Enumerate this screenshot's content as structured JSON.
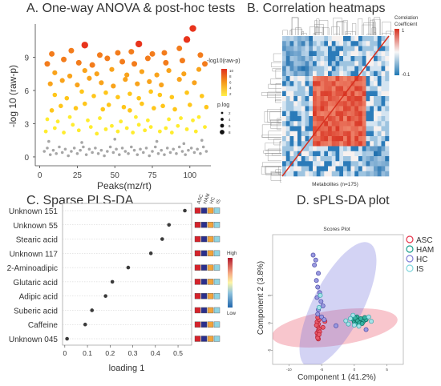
{
  "panels": {
    "a_title": "A. One-way ANOVA & post-hoc tests",
    "b_title": "B. Correlation heatmaps",
    "c_title": "C. Sparse PLS-DA",
    "d_title": "D. sPLS-DA plot"
  },
  "chart_data": [
    {
      "type": "scatter",
      "xlabel": "Peaks(mz/rt)",
      "ylabel": "-log 10 (raw-p)",
      "xticks": [
        0,
        25,
        50,
        75,
        100
      ],
      "yticks": [
        0,
        3,
        6,
        9
      ],
      "xlim": [
        -3,
        114
      ],
      "ylim": [
        -0.8,
        12
      ],
      "legend_color_title": "-log10(raw-p)",
      "legend_color_ticks": [
        "10",
        "8",
        "6",
        "4",
        "2"
      ],
      "legend_size_title": "p.log",
      "legend_size_ticks": [
        "2",
        "4",
        "6",
        "8"
      ],
      "points": [
        [
          3,
          0.5
        ],
        [
          5,
          0.8
        ],
        [
          7,
          0.2
        ],
        [
          9,
          0.6
        ],
        [
          11,
          0.3
        ],
        [
          13,
          0.9
        ],
        [
          15,
          0.4
        ],
        [
          17,
          0.7
        ],
        [
          19,
          0.1
        ],
        [
          21,
          0.5
        ],
        [
          23,
          0.8
        ],
        [
          25,
          0.3
        ],
        [
          27,
          0.6
        ],
        [
          29,
          0.9
        ],
        [
          31,
          0.2
        ],
        [
          33,
          0.7
        ],
        [
          35,
          0.4
        ],
        [
          37,
          0.8
        ],
        [
          39,
          0.3
        ],
        [
          41,
          0.6
        ],
        [
          43,
          0.1
        ],
        [
          45,
          0.5
        ],
        [
          47,
          0.9
        ],
        [
          49,
          0.4
        ],
        [
          51,
          0.7
        ],
        [
          53,
          0.2
        ],
        [
          55,
          0.8
        ],
        [
          57,
          0.5
        ],
        [
          59,
          0.3
        ],
        [
          61,
          0.9
        ],
        [
          63,
          0.6
        ],
        [
          65,
          0.2
        ],
        [
          67,
          0.7
        ],
        [
          69,
          0.4
        ],
        [
          71,
          0.8
        ],
        [
          73,
          0.1
        ],
        [
          75,
          0.5
        ],
        [
          77,
          0.9
        ],
        [
          79,
          0.3
        ],
        [
          81,
          0.6
        ],
        [
          83,
          0.2
        ],
        [
          85,
          0.8
        ],
        [
          87,
          0.4
        ],
        [
          89,
          0.7
        ],
        [
          91,
          0.3
        ],
        [
          93,
          0.9
        ],
        [
          95,
          0.5
        ],
        [
          97,
          0.2
        ],
        [
          99,
          0.6
        ],
        [
          101,
          0.8
        ],
        [
          103,
          0.4
        ],
        [
          105,
          0.7
        ],
        [
          107,
          0.3
        ],
        [
          109,
          0.9
        ],
        [
          111,
          0.5
        ],
        [
          6,
          1.4
        ],
        [
          28,
          1.3
        ],
        [
          50,
          1.6
        ],
        [
          78,
          1.4
        ],
        [
          96,
          1.2
        ],
        [
          108,
          1.5
        ],
        [
          4,
          2.3
        ],
        [
          10,
          2.6
        ],
        [
          16,
          2.2
        ],
        [
          22,
          2.9
        ],
        [
          26,
          2.4
        ],
        [
          34,
          2.7
        ],
        [
          38,
          2.1
        ],
        [
          44,
          2.5
        ],
        [
          48,
          2.8
        ],
        [
          52,
          2.3
        ],
        [
          58,
          2.6
        ],
        [
          62,
          2.2
        ],
        [
          66,
          2.9
        ],
        [
          70,
          2.4
        ],
        [
          74,
          2.7
        ],
        [
          80,
          2.3
        ],
        [
          84,
          2.6
        ],
        [
          88,
          2.2
        ],
        [
          92,
          2.8
        ],
        [
          98,
          2.5
        ],
        [
          104,
          2.3
        ],
        [
          110,
          2.7
        ],
        [
          5,
          3.4
        ],
        [
          12,
          3.2
        ],
        [
          20,
          3.6
        ],
        [
          32,
          3.3
        ],
        [
          40,
          3.5
        ],
        [
          54,
          3.2
        ],
        [
          64,
          3.6
        ],
        [
          72,
          3.3
        ],
        [
          86,
          3.4
        ],
        [
          94,
          3.5
        ],
        [
          102,
          3.3
        ],
        [
          106,
          3.6
        ],
        [
          8,
          4.2
        ],
        [
          14,
          4.6
        ],
        [
          24,
          4.4
        ],
        [
          30,
          4.8
        ],
        [
          42,
          4.3
        ],
        [
          46,
          4.7
        ],
        [
          56,
          4.5
        ],
        [
          60,
          4.2
        ],
        [
          68,
          4.8
        ],
        [
          76,
          4.4
        ],
        [
          82,
          4.6
        ],
        [
          90,
          4.3
        ],
        [
          100,
          4.7
        ],
        [
          111,
          4.5
        ],
        [
          10,
          5.6
        ],
        [
          18,
          5.3
        ],
        [
          28,
          5.9
        ],
        [
          36,
          5.5
        ],
        [
          44,
          5.8
        ],
        [
          52,
          5.4
        ],
        [
          60,
          5.7
        ],
        [
          66,
          5.3
        ],
        [
          74,
          5.9
        ],
        [
          80,
          5.6
        ],
        [
          88,
          5.4
        ],
        [
          98,
          5.8
        ],
        [
          108,
          5.5
        ],
        [
          7,
          6.6
        ],
        [
          15,
          6.9
        ],
        [
          25,
          6.5
        ],
        [
          33,
          7.1
        ],
        [
          41,
          6.7
        ],
        [
          49,
          6.4
        ],
        [
          57,
          7.0
        ],
        [
          65,
          6.6
        ],
        [
          73,
          6.8
        ],
        [
          81,
          6.5
        ],
        [
          93,
          7.0
        ],
        [
          103,
          6.7
        ],
        [
          10,
          7.6
        ],
        [
          20,
          7.3
        ],
        [
          30,
          7.8
        ],
        [
          38,
          7.5
        ],
        [
          48,
          7.9
        ],
        [
          58,
          7.4
        ],
        [
          68,
          7.7
        ],
        [
          78,
          7.4
        ],
        [
          86,
          7.8
        ],
        [
          96,
          7.5
        ],
        [
          106,
          7.9
        ],
        [
          5,
          8.4
        ],
        [
          16,
          8.8
        ],
        [
          26,
          8.5
        ],
        [
          35,
          8.3
        ],
        [
          45,
          8.9
        ],
        [
          55,
          8.6
        ],
        [
          63,
          8.4
        ],
        [
          72,
          8.9
        ],
        [
          84,
          8.5
        ],
        [
          95,
          8.7
        ],
        [
          110,
          8.4
        ],
        [
          8,
          9.3
        ],
        [
          21,
          9.6
        ],
        [
          40,
          9.2
        ],
        [
          52,
          9.4
        ],
        [
          61,
          9.5
        ],
        [
          75,
          9.3
        ],
        [
          83,
          9.4
        ],
        [
          93,
          9.8
        ],
        [
          107,
          9.2
        ],
        [
          30,
          10.1
        ],
        [
          66,
          10.2
        ],
        [
          98,
          10.6
        ],
        [
          102,
          11.6
        ]
      ]
    },
    {
      "type": "heatmap",
      "xlabel": "Metabolites (n=175)",
      "legend_title": "Correlation Coefficient",
      "legend_ticks": [
        "1",
        "-0.1"
      ]
    },
    {
      "type": "dot",
      "xlabel": "loading 1",
      "xticks": [
        0.0,
        0.1,
        0.2,
        0.3,
        0.4,
        0.5
      ],
      "xlim": [
        -0.01,
        0.56
      ],
      "categories": [
        "Unknown 151",
        "Unknown 55",
        "Stearic acid",
        "Unknown 117",
        "2-Aminoadipic",
        "Glutaric acid",
        "Adipic acid",
        "Suberic acid",
        "Caffeine",
        "Unknown 045"
      ],
      "values": [
        0.53,
        0.46,
        0.43,
        0.38,
        0.28,
        0.21,
        0.18,
        0.12,
        0.09,
        0.01
      ],
      "group_labels": [
        "ASC",
        "HAM",
        "HC",
        "IS"
      ],
      "legend_high": "High",
      "legend_low": "Low"
    },
    {
      "type": "scatter",
      "title": "Scores Plot",
      "xlabel": "Component 1 (41.2%)",
      "ylabel": "Component 2 (3.8%)",
      "xticks": [
        -10,
        -5,
        0,
        5
      ],
      "yticks": [
        5,
        0,
        -5
      ],
      "xlim": [
        -12.5,
        7.5
      ],
      "ylim": [
        -7.5,
        16
      ],
      "legend": [
        "ASC",
        "HAM",
        "HC",
        "IS"
      ],
      "colors": {
        "ASC": "#e6334a",
        "HAM": "#1a9e8c",
        "HC": "#7f7fd6",
        "IS": "#7fd6dc"
      },
      "series": [
        {
          "name": "ASC",
          "points": [
            [
              -5.6,
              -2.6
            ],
            [
              -5.5,
              -2.2
            ],
            [
              -5.7,
              -1.8
            ],
            [
              -5.5,
              -1.4
            ],
            [
              -5.4,
              -1.0
            ],
            [
              -5.6,
              -0.6
            ],
            [
              -5.5,
              -0.2
            ],
            [
              -5.7,
              0.2
            ],
            [
              -5.4,
              0.6
            ],
            [
              -5.5,
              -2.9
            ],
            [
              -5.6,
              -2.4
            ],
            [
              -5.3,
              -1.6
            ],
            [
              -5.6,
              1.0
            ],
            [
              -4.8,
              -0.8
            ],
            [
              -5.8,
              -0.4
            ],
            [
              -4.5,
              0.3
            ],
            [
              -5.6,
              -2.7
            ],
            [
              -5.4,
              -2.1
            ]
          ]
        },
        {
          "name": "HAM",
          "points": [
            [
              0.0,
              0.2
            ],
            [
              0.3,
              0.6
            ],
            [
              0.6,
              0.1
            ],
            [
              0.9,
              0.5
            ],
            [
              0.2,
              -0.2
            ],
            [
              0.5,
              0.4
            ],
            [
              1.0,
              0.8
            ],
            [
              1.4,
              0.3
            ],
            [
              -0.3,
              0.7
            ],
            [
              1.8,
              0.6
            ],
            [
              0.8,
              0.0
            ],
            [
              0.4,
              1.1
            ],
            [
              1.2,
              -0.1
            ],
            [
              0.1,
              0.9
            ],
            [
              1.6,
              1.0
            ]
          ]
        },
        {
          "name": "HC",
          "points": [
            [
              -6.3,
              12.3
            ],
            [
              -5.9,
              11.4
            ],
            [
              -6.1,
              10.5
            ],
            [
              -5.5,
              9.0
            ],
            [
              -5.8,
              7.7
            ],
            [
              -5.6,
              6.5
            ],
            [
              -5.3,
              5.5
            ],
            [
              -5.7,
              4.6
            ],
            [
              -5.1,
              3.9
            ],
            [
              -4.8,
              3.1
            ],
            [
              -5.5,
              2.4
            ],
            [
              -5.6,
              1.6
            ],
            [
              -5.0,
              1.1
            ],
            [
              -4.6,
              0.6
            ],
            [
              -2.8,
              -0.5
            ],
            [
              1.8,
              -1.2
            ]
          ]
        },
        {
          "name": "IS",
          "points": [
            [
              -5.2,
              5.0
            ],
            [
              -5.4,
              2.8
            ],
            [
              -1.3,
              0.4
            ],
            [
              -0.9,
              -0.2
            ],
            [
              0.0,
              -0.4
            ],
            [
              -0.6,
              0.8
            ],
            [
              2.6,
              0.3
            ],
            [
              2.2,
              1.1
            ],
            [
              -0.2,
              1.4
            ],
            [
              0.7,
              -0.6
            ]
          ]
        }
      ],
      "ellipses": [
        {
          "name": "ASC",
          "cx": -3.0,
          "cy": -0.9,
          "rx": 9.7,
          "ry": 3.2,
          "angle": 8
        },
        {
          "name": "HC",
          "cx": -2.5,
          "cy": 3.3,
          "rx": 10.6,
          "ry": 4.5,
          "angle": 63
        }
      ]
    }
  ]
}
